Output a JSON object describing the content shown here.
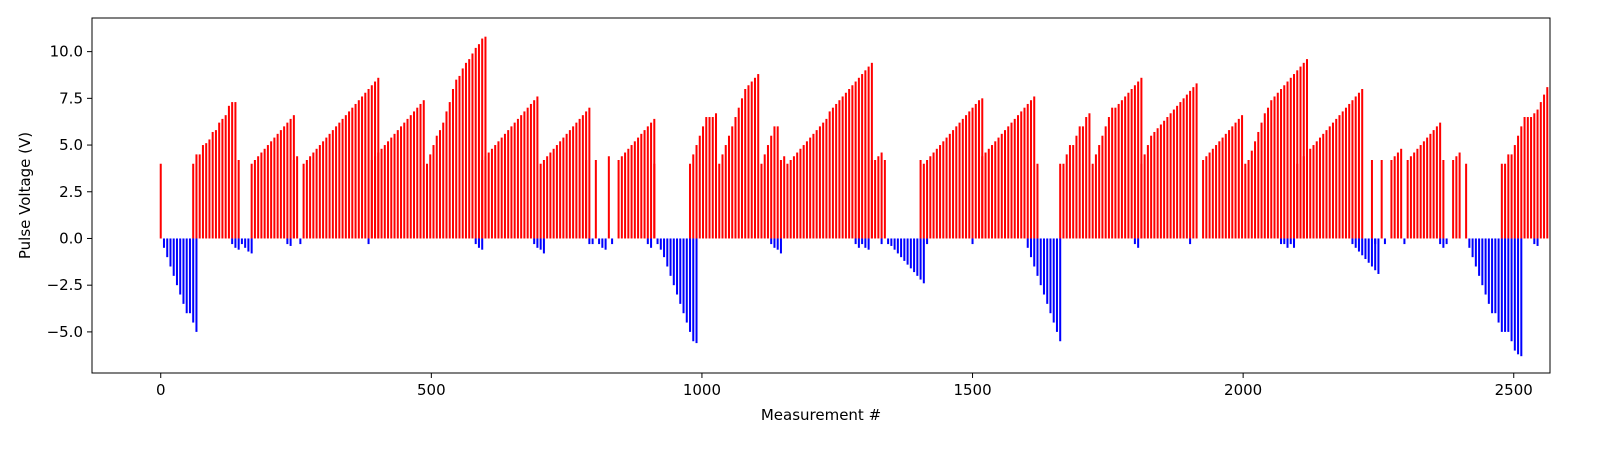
{
  "chart_data": {
    "type": "bar",
    "title": "",
    "xlabel": "Measurement #",
    "ylabel": "Pulse Voltage (V)",
    "xlim": [
      -127,
      2567
    ],
    "ylim": [
      -7.2,
      11.8
    ],
    "xticks": [
      0,
      500,
      1000,
      1500,
      2000,
      2500
    ],
    "xtick_labels": [
      "0",
      "500",
      "1000",
      "1500",
      "2000",
      "2500"
    ],
    "yticks": [
      -5.0,
      -2.5,
      0.0,
      2.5,
      5.0,
      7.5,
      10.0
    ],
    "ytick_labels": [
      "−5.0",
      "−2.5",
      "0.0",
      "2.5",
      "5.0",
      "7.5",
      "10.0"
    ],
    "grid": false,
    "colors": {
      "positive": "#ff0000",
      "negative": "#0000ff"
    },
    "bar_spacing": 6,
    "series": [
      {
        "color": "#ff0000",
        "sign": "positive",
        "segments": [
          {
            "x0": 0,
            "values": [
              4.0
            ]
          },
          {
            "x0": 60,
            "values": [
              4.0,
              4.5,
              4.5,
              5.0,
              5.1,
              5.3,
              5.7,
              5.8,
              6.2,
              6.4,
              6.6,
              7.1,
              7.3,
              7.3
            ]
          },
          {
            "x0": 144,
            "values": [
              4.2
            ]
          },
          {
            "x0": 168,
            "values": [
              4.0,
              4.2,
              4.4,
              4.6,
              4.8,
              5.0,
              5.2,
              5.4,
              5.6,
              5.8,
              6.0,
              6.2,
              6.4,
              6.6
            ]
          },
          {
            "x0": 246,
            "values": [
              4.2,
              4.4
            ]
          },
          {
            "x0": 264,
            "values": [
              4.0,
              4.2,
              4.4,
              4.6,
              4.8,
              5.0,
              5.2,
              5.4,
              5.6,
              5.8,
              6.0,
              6.2,
              6.4,
              6.6,
              6.8,
              7.0,
              7.2,
              7.4,
              7.6,
              7.8,
              8.0,
              8.2,
              8.4,
              8.6
            ]
          },
          {
            "x0": 390,
            "values": [
              4.2,
              4.4,
              4.6,
              4.8,
              5.0,
              5.2,
              5.4,
              5.6,
              5.8,
              6.0,
              6.2,
              6.4,
              6.6,
              6.8,
              7.0,
              7.2,
              7.4,
              4.0,
              4.5,
              5.0,
              5.5,
              5.8,
              6.2,
              6.8,
              7.3,
              8.0,
              8.5,
              8.7,
              9.1,
              9.4,
              9.6,
              9.9,
              10.2,
              10.4,
              10.7,
              10.8
            ]
          },
          {
            "x0": 594,
            "values": [
              4.2,
              4.4,
              4.6,
              4.8,
              5.0,
              5.2,
              5.4,
              5.6,
              5.8,
              6.0,
              6.2,
              6.4,
              6.6,
              6.8,
              7.0,
              7.2,
              7.4,
              7.6
            ]
          },
          {
            "x0": 702,
            "values": [
              4.0,
              4.2,
              4.4,
              4.6,
              4.8,
              5.0,
              5.2,
              5.4,
              5.6,
              5.8,
              6.0,
              6.2,
              6.4,
              6.6,
              6.8,
              7.0
            ]
          },
          {
            "x0": 786,
            "values": [
              4.2
            ]
          },
          {
            "x0": 804,
            "values": [
              4.2
            ]
          },
          {
            "x0": 828,
            "values": [
              4.4
            ]
          },
          {
            "x0": 846,
            "values": [
              4.2,
              4.4,
              4.6,
              4.8,
              5.0,
              5.2,
              5.4,
              5.6,
              5.8,
              6.0,
              6.2,
              6.4
            ]
          },
          {
            "x0": 912,
            "values": [
              4.0
            ]
          },
          {
            "x0": 978,
            "values": [
              4.0,
              4.5,
              5.0,
              5.5,
              6.0,
              6.5,
              6.5,
              6.5,
              6.7,
              4.0,
              4.5,
              5.0,
              5.5,
              6.0,
              6.5,
              7.0,
              7.5,
              8.0,
              8.2,
              8.4,
              8.6,
              8.8,
              4.0,
              4.5,
              5.0,
              5.5,
              6.0,
              6.0
            ]
          },
          {
            "x0": 1146,
            "values": [
              4.2,
              4.4,
              4.0,
              4.2,
              4.4,
              4.6,
              4.8,
              5.0,
              5.2,
              5.4,
              5.6,
              5.8,
              6.0,
              6.2,
              6.4,
              6.8,
              7.0,
              7.2,
              7.4,
              7.6,
              7.8,
              8.0,
              8.2,
              8.4,
              8.6,
              8.8,
              9.0,
              9.2,
              9.4
            ]
          },
          {
            "x0": 1290,
            "values": [
              4.2
            ]
          },
          {
            "x0": 1314,
            "values": [
              4.2,
              4.2,
              4.4,
              4.6
            ]
          },
          {
            "x0": 1338,
            "values": [
              4.2
            ]
          },
          {
            "x0": 1404,
            "values": [
              4.2,
              4.0,
              4.2,
              4.4,
              4.6,
              4.8,
              5.0,
              5.2,
              5.4,
              5.6,
              5.8,
              6.0,
              6.2,
              6.4,
              6.6,
              6.8,
              7.0,
              7.2,
              7.4,
              7.5
            ]
          },
          {
            "x0": 1512,
            "values": [
              4.2,
              4.4,
              4.6,
              4.8,
              5.0,
              5.2,
              5.4,
              5.6,
              5.8,
              6.0,
              6.2,
              6.4,
              6.6,
              6.8,
              7.0,
              7.2,
              7.4,
              7.6,
              4.0
            ]
          },
          {
            "x0": 1662,
            "values": [
              4.0,
              4.0,
              4.5,
              5.0,
              5.0,
              5.5,
              6.0,
              6.0,
              6.5,
              6.7,
              4.0,
              4.5,
              5.0,
              5.5,
              6.0,
              6.5,
              7.0,
              7.0,
              7.2,
              7.4,
              7.6,
              7.8,
              8.0,
              8.2,
              8.4,
              8.6
            ]
          },
          {
            "x0": 1812,
            "values": [
              4.0,
              4.5,
              5.0,
              5.5,
              5.7,
              5.9,
              6.1,
              6.3,
              6.5,
              6.7,
              6.9,
              7.1,
              7.3,
              7.5,
              7.7,
              7.9,
              8.1,
              8.3
            ]
          },
          {
            "x0": 1926,
            "values": [
              4.2,
              4.4,
              4.6,
              4.8,
              5.0,
              5.2,
              5.4,
              5.6,
              5.8,
              6.0,
              6.2,
              6.4,
              6.6,
              4.0,
              4.2,
              4.7,
              5.2,
              5.7,
              6.2,
              6.7,
              7.0,
              7.4,
              7.6,
              7.8,
              8.0,
              8.2,
              8.4,
              8.6,
              8.8,
              9.0,
              9.2,
              9.4,
              9.6
            ]
          },
          {
            "x0": 2082,
            "values": [
              4.2
            ]
          },
          {
            "x0": 2100,
            "values": [
              4.0,
              4.2,
              4.4,
              4.6,
              4.8,
              5.0,
              5.2,
              5.4,
              5.6,
              5.8,
              6.0,
              6.2,
              6.4,
              6.6,
              6.8,
              7.0,
              7.2,
              7.4,
              7.6,
              7.8,
              8.0
            ]
          },
          {
            "x0": 2238,
            "values": [
              4.2
            ]
          },
          {
            "x0": 2256,
            "values": [
              4.2
            ]
          },
          {
            "x0": 2274,
            "values": [
              4.2,
              4.4,
              4.6,
              4.8
            ]
          },
          {
            "x0": 2304,
            "values": [
              4.2,
              4.4,
              4.6,
              4.8,
              5.0,
              5.2,
              5.4,
              5.6,
              5.8,
              6.0,
              6.2
            ]
          },
          {
            "x0": 2370,
            "values": [
              4.2
            ]
          },
          {
            "x0": 2388,
            "values": [
              4.2,
              4.4,
              4.6
            ]
          },
          {
            "x0": 2412,
            "values": [
              4.0
            ]
          },
          {
            "x0": 2478,
            "values": [
              4.0,
              4.0,
              4.5,
              4.5,
              5.0,
              5.5,
              6.0,
              6.5,
              6.5,
              6.5,
              6.7,
              6.9,
              7.3,
              7.7,
              8.1
            ]
          }
        ]
      },
      {
        "color": "#0000ff",
        "sign": "negative",
        "segments": [
          {
            "x0": 6,
            "values": [
              -0.5,
              -1.0,
              -1.5,
              -2.0,
              -2.5,
              -3.0,
              -3.5,
              -4.0,
              -4.0,
              -4.5,
              -5.0
            ]
          },
          {
            "x0": 132,
            "values": [
              -0.3,
              -0.5,
              -0.6
            ]
          },
          {
            "x0": 150,
            "values": [
              -0.3,
              -0.5,
              -0.7,
              -0.8
            ]
          },
          {
            "x0": 234,
            "values": [
              -0.3,
              -0.4
            ]
          },
          {
            "x0": 258,
            "values": [
              -0.3
            ]
          },
          {
            "x0": 384,
            "values": [
              -0.3
            ]
          },
          {
            "x0": 582,
            "values": [
              -0.3,
              -0.5,
              -0.6
            ]
          },
          {
            "x0": 690,
            "values": [
              -0.3,
              -0.5,
              -0.6,
              -0.8
            ]
          },
          {
            "x0": 792,
            "values": [
              -0.3
            ]
          },
          {
            "x0": 798,
            "values": [
              -0.3
            ]
          },
          {
            "x0": 810,
            "values": [
              -0.3,
              -0.5,
              -0.6
            ]
          },
          {
            "x0": 834,
            "values": [
              -0.3
            ]
          },
          {
            "x0": 900,
            "values": [
              -0.3,
              -0.5
            ]
          },
          {
            "x0": 918,
            "values": [
              -0.3,
              -0.6,
              -1.0,
              -1.5,
              -2.0,
              -2.5,
              -3.0,
              -3.5,
              -4.0,
              -4.5,
              -5.0,
              -5.5,
              -5.6
            ]
          },
          {
            "x0": 1128,
            "values": [
              -0.3,
              -0.5,
              -0.6,
              -0.8
            ]
          },
          {
            "x0": 1284,
            "values": [
              -0.3,
              -0.5
            ]
          },
          {
            "x0": 1296,
            "values": [
              -0.3,
              -0.5,
              -0.6
            ]
          },
          {
            "x0": 1332,
            "values": [
              -0.3
            ]
          },
          {
            "x0": 1344,
            "values": [
              -0.3,
              -0.4,
              -0.6,
              -0.8,
              -1.0,
              -1.2,
              -1.4,
              -1.6,
              -1.8,
              -2.0,
              -2.2,
              -2.4
            ]
          },
          {
            "x0": 1416,
            "values": [
              -0.3
            ]
          },
          {
            "x0": 1500,
            "values": [
              -0.3
            ]
          },
          {
            "x0": 1602,
            "values": [
              -0.5,
              -1.0,
              -1.5,
              -2.0,
              -2.5,
              -3.0,
              -3.5,
              -4.0,
              -4.5,
              -5.0,
              -5.5
            ]
          },
          {
            "x0": 1800,
            "values": [
              -0.3,
              -0.5
            ]
          },
          {
            "x0": 1902,
            "values": [
              -0.3
            ]
          },
          {
            "x0": 2070,
            "values": [
              -0.3
            ]
          },
          {
            "x0": 2076,
            "values": [
              -0.3,
              -0.5
            ]
          },
          {
            "x0": 2088,
            "values": [
              -0.3,
              -0.5
            ]
          },
          {
            "x0": 2202,
            "values": [
              -0.3,
              -0.5,
              -0.7,
              -0.9,
              -1.1,
              -1.3,
              -1.5,
              -1.7,
              -1.9
            ]
          },
          {
            "x0": 2244,
            "values": [
              -0.3
            ]
          },
          {
            "x0": 2262,
            "values": [
              -0.3
            ]
          },
          {
            "x0": 2298,
            "values": [
              -0.3
            ]
          },
          {
            "x0": 2364,
            "values": [
              -0.3,
              -0.5
            ]
          },
          {
            "x0": 2376,
            "values": [
              -0.3
            ]
          },
          {
            "x0": 2418,
            "values": [
              -0.5,
              -1.0,
              -1.5,
              -2.0,
              -2.5,
              -3.0,
              -3.5,
              -4.0,
              -4.0,
              -4.5,
              -5.0,
              -5.0,
              -5.0,
              -5.5,
              -6.0,
              -6.2,
              -6.3
            ]
          },
          {
            "x0": 2538,
            "values": [
              -0.3,
              -0.4
            ]
          }
        ]
      }
    ]
  }
}
